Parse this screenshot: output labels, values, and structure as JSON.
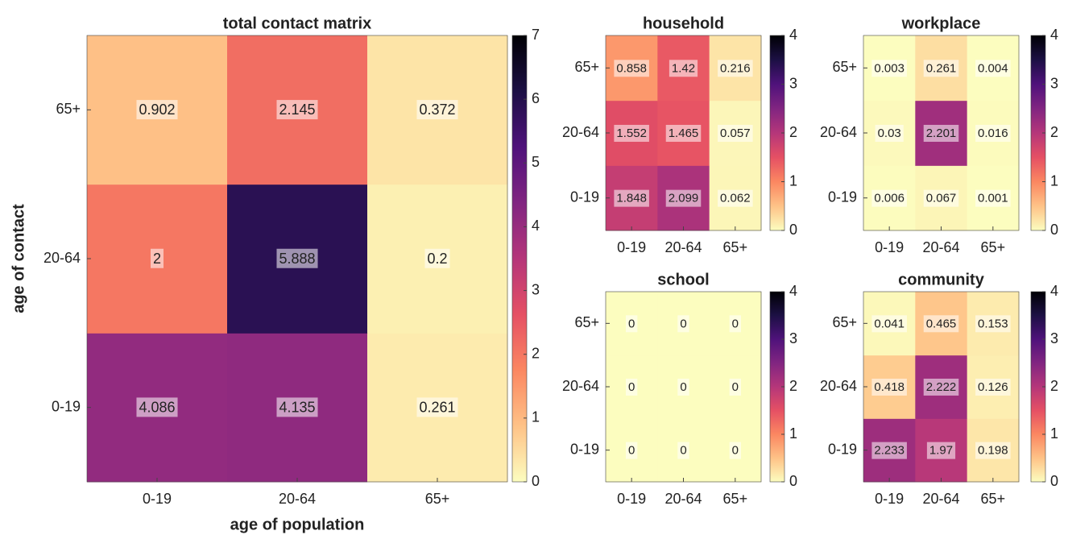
{
  "chart_data": [
    {
      "type": "heatmap",
      "title": "total contact matrix",
      "xlabel": "age of population",
      "ylabel": "age of contact",
      "x": [
        "0-19",
        "20-64",
        "65+"
      ],
      "y": [
        "0-19",
        "20-64",
        "65+"
      ],
      "values": [
        [
          4.086,
          4.135,
          0.261
        ],
        [
          2,
          5.888,
          0.2
        ],
        [
          0.902,
          2.145,
          0.372
        ]
      ],
      "zlim": [
        0,
        7
      ],
      "zticks": [
        0,
        1,
        2,
        3,
        4,
        5,
        6,
        7
      ],
      "colormap": [
        "#fcfdbf",
        "#fec287",
        "#fb8761",
        "#e55064",
        "#b5367a",
        "#812581",
        "#4f127b",
        "#1c1044",
        "#000004"
      ]
    },
    {
      "type": "heatmap",
      "title": "household",
      "x": [
        "0-19",
        "20-64",
        "65+"
      ],
      "y": [
        "0-19",
        "20-64",
        "65+"
      ],
      "values": [
        [
          1.848,
          2.099,
          0.062
        ],
        [
          1.552,
          1.465,
          0.057
        ],
        [
          0.858,
          1.42,
          0.216
        ]
      ],
      "zlim": [
        0,
        4
      ],
      "zticks": [
        0,
        1,
        2,
        3,
        4
      ],
      "colormap": [
        "#fcfdbf",
        "#fec287",
        "#fb8761",
        "#e55064",
        "#b5367a",
        "#812581",
        "#4f127b",
        "#1c1044",
        "#000004"
      ]
    },
    {
      "type": "heatmap",
      "title": "workplace",
      "x": [
        "0-19",
        "20-64",
        "65+"
      ],
      "y": [
        "0-19",
        "20-64",
        "65+"
      ],
      "values": [
        [
          0.006,
          0.067,
          0.001
        ],
        [
          0.03,
          2.201,
          0.016
        ],
        [
          0.003,
          0.261,
          0.004
        ]
      ],
      "zlim": [
        0,
        4
      ],
      "zticks": [
        0,
        1,
        2,
        3,
        4
      ],
      "colormap": [
        "#fcfdbf",
        "#fec287",
        "#fb8761",
        "#e55064",
        "#b5367a",
        "#812581",
        "#4f127b",
        "#1c1044",
        "#000004"
      ]
    },
    {
      "type": "heatmap",
      "title": "school",
      "x": [
        "0-19",
        "20-64",
        "65+"
      ],
      "y": [
        "0-19",
        "20-64",
        "65+"
      ],
      "values": [
        [
          0,
          0,
          0
        ],
        [
          0,
          0,
          0
        ],
        [
          0,
          0,
          0
        ]
      ],
      "zlim": [
        0,
        4
      ],
      "zticks": [
        0,
        1,
        2,
        3,
        4
      ],
      "colormap": [
        "#fcfdbf",
        "#fec287",
        "#fb8761",
        "#e55064",
        "#b5367a",
        "#812581",
        "#4f127b",
        "#1c1044",
        "#000004"
      ]
    },
    {
      "type": "heatmap",
      "title": "community",
      "x": [
        "0-19",
        "20-64",
        "65+"
      ],
      "y": [
        "0-19",
        "20-64",
        "65+"
      ],
      "values": [
        [
          2.233,
          1.97,
          0.198
        ],
        [
          0.418,
          2.222,
          0.126
        ],
        [
          0.041,
          0.465,
          0.153
        ]
      ],
      "zlim": [
        0,
        4
      ],
      "zticks": [
        0,
        1,
        2,
        3,
        4
      ],
      "colormap": [
        "#fcfdbf",
        "#fec287",
        "#fb8761",
        "#e55064",
        "#b5367a",
        "#812581",
        "#4f127b",
        "#1c1044",
        "#000004"
      ]
    }
  ]
}
